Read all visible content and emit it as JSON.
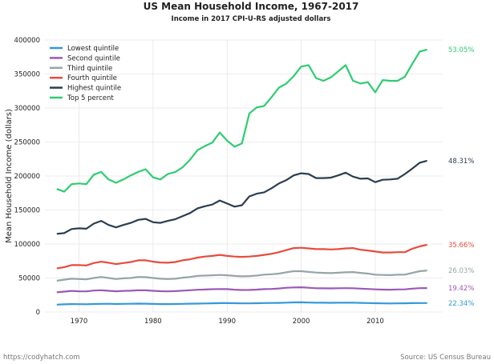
{
  "chart_data": {
    "type": "line",
    "title": "US Mean Household Income, 1967-2017",
    "subtitle": "Income in 2017 CPI-U-RS adjusted dollars",
    "xlabel": "",
    "ylabel": "Mean Household Income (dollars)",
    "xlim": [
      1965.4,
      2019.1
    ],
    "ylim": [
      0,
      400000
    ],
    "xticks": [
      1970,
      1980,
      1990,
      2000,
      2010
    ],
    "yticks": [
      0,
      50000,
      100000,
      150000,
      200000,
      250000,
      300000,
      350000,
      400000
    ],
    "grid": true,
    "legend_position": "top-left",
    "x": [
      1967,
      1968,
      1969,
      1970,
      1971,
      1972,
      1973,
      1974,
      1975,
      1976,
      1977,
      1978,
      1979,
      1980,
      1981,
      1982,
      1983,
      1984,
      1985,
      1986,
      1987,
      1988,
      1989,
      1990,
      1991,
      1992,
      1993,
      1994,
      1995,
      1996,
      1997,
      1998,
      1999,
      2000,
      2001,
      2002,
      2003,
      2004,
      2005,
      2006,
      2007,
      2008,
      2009,
      2010,
      2011,
      2012,
      2013,
      2014,
      2015,
      2016,
      2017
    ],
    "series": [
      {
        "name": "Lowest quintile",
        "color": "#3498db",
        "end_label": "22.34%",
        "values": [
          10800,
          11300,
          11600,
          11500,
          11400,
          11800,
          12000,
          12100,
          11800,
          12000,
          12100,
          12300,
          12200,
          11900,
          11700,
          11600,
          11800,
          12000,
          12200,
          12400,
          12600,
          12800,
          13000,
          13100,
          12900,
          12700,
          12700,
          12900,
          13200,
          13300,
          13400,
          13800,
          14100,
          14200,
          13900,
          13700,
          13600,
          13500,
          13600,
          13700,
          13800,
          13400,
          13200,
          12900,
          12700,
          12600,
          12700,
          12800,
          13000,
          13200,
          13200
        ]
      },
      {
        "name": "Second quintile",
        "color": "#9b59b6",
        "end_label": "19.42%",
        "values": [
          29000,
          30000,
          31000,
          30500,
          30300,
          31500,
          32000,
          31200,
          30500,
          31000,
          31300,
          32000,
          31900,
          31200,
          30600,
          30400,
          30700,
          31400,
          32000,
          32700,
          33100,
          33500,
          33800,
          33600,
          32800,
          32400,
          32500,
          32900,
          33700,
          33900,
          34600,
          35600,
          36100,
          36400,
          35700,
          35000,
          34800,
          34700,
          34900,
          35100,
          35000,
          34300,
          33900,
          33300,
          32900,
          32800,
          33200,
          33300,
          34300,
          35100,
          35200
        ]
      },
      {
        "name": "Third quintile",
        "color": "#95a5a6",
        "end_label": "26.03%",
        "values": [
          46000,
          47500,
          49000,
          48500,
          48000,
          50000,
          51500,
          50000,
          48500,
          49500,
          50000,
          51500,
          51300,
          50000,
          49000,
          48500,
          49000,
          50500,
          51500,
          53000,
          53500,
          54000,
          54500,
          54000,
          53000,
          52500,
          52800,
          53500,
          55000,
          55500,
          56500,
          58500,
          60000,
          60000,
          59000,
          58000,
          57500,
          57200,
          57800,
          58300,
          58700,
          57500,
          56500,
          55000,
          54500,
          54200,
          54800,
          55000,
          57500,
          60000,
          61000
        ]
      },
      {
        "name": "Fourth quintile",
        "color": "#e74c3c",
        "end_label": "35.66%",
        "values": [
          64000,
          66000,
          69000,
          69000,
          68500,
          72000,
          74000,
          72500,
          70500,
          72000,
          73500,
          76000,
          76000,
          74000,
          72800,
          72500,
          73500,
          76000,
          77500,
          80000,
          81500,
          82500,
          84000,
          82500,
          81500,
          81000,
          81500,
          82500,
          84000,
          85500,
          88000,
          91000,
          94000,
          94500,
          93500,
          92500,
          92500,
          92000,
          92500,
          93500,
          94000,
          91500,
          90500,
          89000,
          87500,
          87500,
          88000,
          88000,
          93000,
          96500,
          99000
        ]
      },
      {
        "name": "Highest quintile",
        "color": "#2c3e50",
        "end_label": "48.31%",
        "values": [
          115000,
          116000,
          122000,
          123000,
          122500,
          130000,
          134000,
          128000,
          124500,
          128000,
          131000,
          135500,
          137000,
          132000,
          131000,
          134000,
          136500,
          141000,
          145500,
          152500,
          155500,
          158000,
          164000,
          159500,
          155000,
          157000,
          170000,
          174000,
          176000,
          182000,
          189000,
          194000,
          201000,
          204000,
          203000,
          197000,
          197000,
          197500,
          201000,
          205000,
          199000,
          196000,
          196500,
          191000,
          194500,
          195000,
          196000,
          203000,
          211000,
          219500,
          222500
        ]
      },
      {
        "name": "Top 5 percent",
        "color": "#2ecc71",
        "end_label": "53.05%",
        "values": [
          181000,
          177000,
          188000,
          189000,
          188000,
          202000,
          206000,
          195000,
          190000,
          195000,
          201000,
          206000,
          210000,
          198000,
          195000,
          203000,
          206000,
          213000,
          224000,
          238000,
          244000,
          249000,
          264000,
          252000,
          243000,
          248000,
          292000,
          301000,
          303000,
          316000,
          330000,
          336000,
          347000,
          361000,
          363000,
          344000,
          340000,
          345000,
          354000,
          363000,
          340000,
          336000,
          338000,
          323000,
          341000,
          340000,
          340000,
          346000,
          365000,
          383000,
          386000
        ]
      }
    ]
  },
  "footer": {
    "left": "https://codyhatch.com",
    "right": "Source: US Census Bureau"
  }
}
